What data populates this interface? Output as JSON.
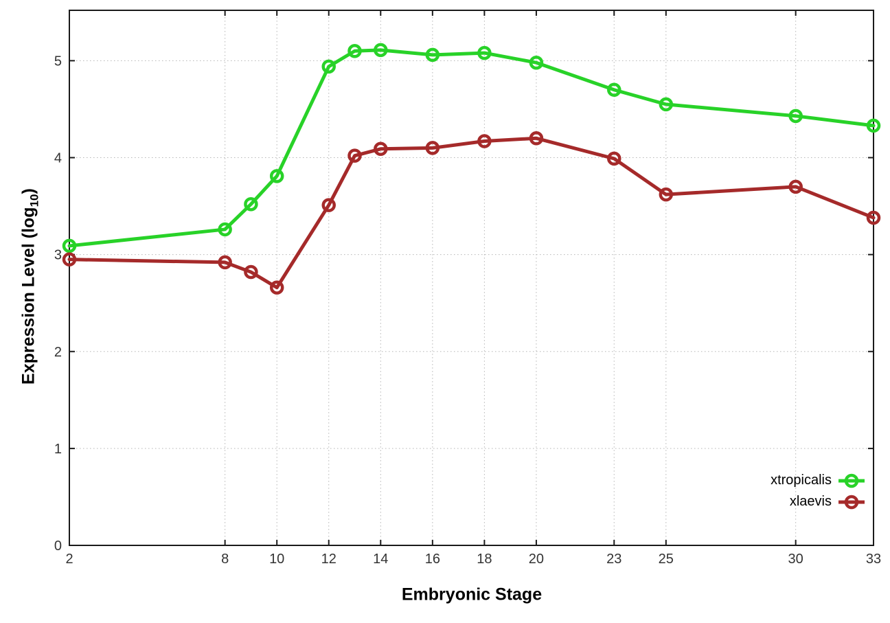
{
  "figure": {
    "background": "#ffffff"
  },
  "chart_data": {
    "type": "line",
    "title": "",
    "xlabel": "Embryonic Stage",
    "ylabel": "Expression Level (log10)",
    "ylabel_parts": {
      "prefix": "Expression Level (log",
      "subscript": "10",
      "suffix": ")"
    },
    "x": [
      2,
      8,
      9,
      10,
      12,
      13,
      14,
      16,
      18,
      20,
      23,
      25,
      30,
      33
    ],
    "xlim": [
      2,
      33
    ],
    "ylim": [
      0,
      5.52
    ],
    "xticks": {
      "values": [
        2,
        8,
        10,
        12,
        14,
        16,
        18,
        20,
        23,
        25,
        30,
        33
      ],
      "labels": [
        "2",
        "8",
        "10",
        "12",
        "14",
        "16",
        "18",
        "20",
        "23",
        "25",
        "30",
        "33"
      ]
    },
    "yticks": {
      "values": [
        0,
        1,
        2,
        3,
        4,
        5
      ],
      "labels": [
        "0",
        "1",
        "2",
        "3",
        "4",
        "5"
      ]
    },
    "grid": true,
    "grid_style": "dotted",
    "legend_position": "inside-bottom-right",
    "marker": "open-circle",
    "series": [
      {
        "name": "xtropicalis",
        "color": "#28d228",
        "values": [
          3.09,
          3.26,
          3.52,
          3.81,
          4.94,
          5.1,
          5.11,
          5.06,
          5.08,
          4.98,
          4.7,
          4.55,
          4.43,
          4.33
        ]
      },
      {
        "name": "xlaevis",
        "color": "#a52a2a",
        "values": [
          2.95,
          2.92,
          2.82,
          2.66,
          3.51,
          4.02,
          4.09,
          4.1,
          4.17,
          4.2,
          3.99,
          3.62,
          3.7,
          3.38
        ]
      }
    ],
    "axis_color": "#1a1a1a",
    "tick_label_color": "#333333",
    "grid_color": "#b5b5b5"
  }
}
